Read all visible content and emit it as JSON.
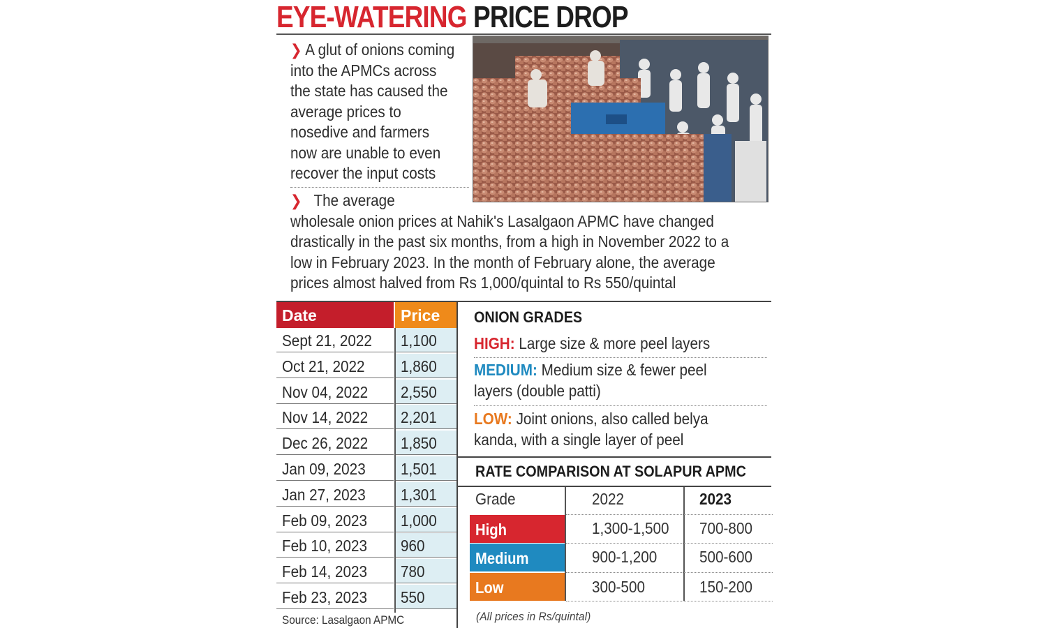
{
  "headline": {
    "part1": "EYE-WATERING",
    "part2": "PRICE DROP"
  },
  "bullet1": {
    "lines": [
      "A glut of onions coming",
      "into the APMCs across",
      "the state has caused the",
      "average prices to",
      "nosedive and farmers",
      "now are unable to even",
      "recover the input costs"
    ]
  },
  "bullet2": {
    "lines": [
      "The average",
      "wholesale onion prices at Nahik's Lasalgaon APMC have changed",
      "drastically in the past six months, from a high in November 2022 to a",
      "low in February 2023. In the month of February alone, the average",
      "prices almost halved from Rs 1,000/quintal to Rs 550/quintal"
    ]
  },
  "price_table": {
    "headers": {
      "date": "Date",
      "price": "Price"
    },
    "rows": [
      {
        "date": "Sept 21, 2022",
        "price": "1,100"
      },
      {
        "date": "Oct 21, 2022",
        "price": "1,860"
      },
      {
        "date": "Nov 04, 2022",
        "price": "2,550"
      },
      {
        "date": "Nov 14, 2022",
        "price": "2,201"
      },
      {
        "date": "Dec 26, 2022",
        "price": "1,850"
      },
      {
        "date": "Jan 09, 2023",
        "price": "1,501"
      },
      {
        "date": "Jan 27, 2023",
        "price": "1,301"
      },
      {
        "date": "Feb 09, 2023",
        "price": "1,000"
      },
      {
        "date": "Feb 10, 2023",
        "price": "960"
      },
      {
        "date": "Feb 14, 2023",
        "price": "780"
      },
      {
        "date": "Feb 23, 2023",
        "price": "550"
      }
    ],
    "source": "Source: Lasalgaon APMC"
  },
  "onion_grades": {
    "title": "ONION GRADES",
    "high": {
      "key": "HIGH:",
      "lines": [
        "Large size & more peel layers"
      ]
    },
    "medium": {
      "key": "MEDIUM:",
      "lines": [
        "Medium size & fewer peel",
        "layers (double patti)"
      ]
    },
    "low": {
      "key": "LOW:",
      "lines": [
        "Joint onions, also called belya",
        "kanda, with a single layer of peel"
      ]
    }
  },
  "rate_comparison": {
    "title": "RATE COMPARISON AT SOLAPUR APMC",
    "headers": {
      "grade": "Grade",
      "y2022": "2022",
      "y2023": "2023"
    },
    "rows": [
      {
        "grade": "High",
        "y2022": "1,300-1,500",
        "y2023": "700-800"
      },
      {
        "grade": "Medium",
        "y2022": "900-1,200",
        "y2023": "500-600"
      },
      {
        "grade": "Low",
        "y2022": "300-500",
        "y2023": "150-200"
      }
    ],
    "note": "(All prices in Rs/quintal)"
  },
  "colors": {
    "red": "#d7262f",
    "orange": "#e8791f",
    "blue": "#1f8ac0",
    "price_cell_bg": "#ddeef3"
  }
}
